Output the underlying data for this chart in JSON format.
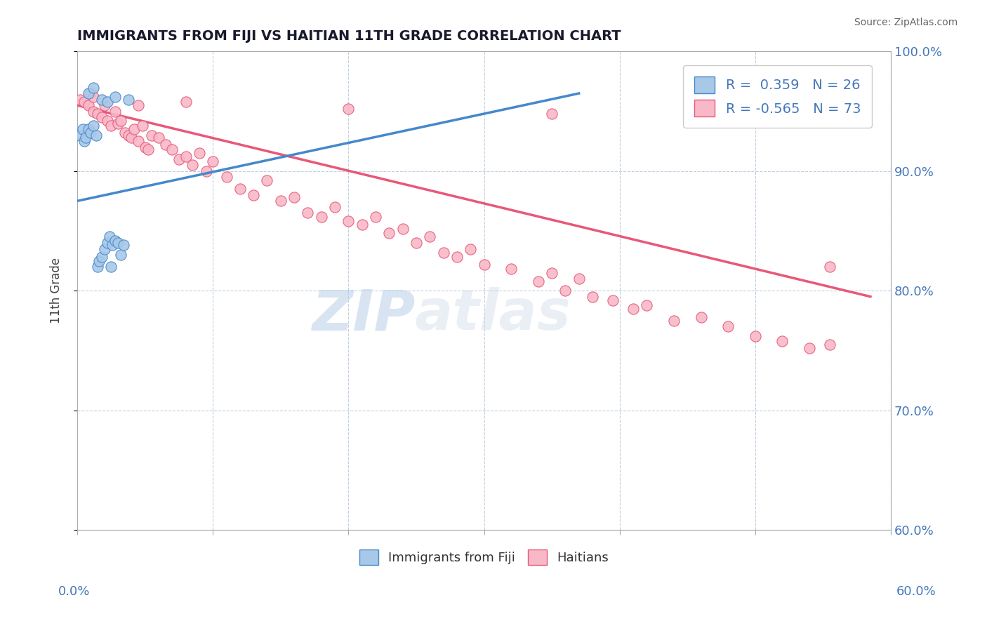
{
  "title": "IMMIGRANTS FROM FIJI VS HAITIAN 11TH GRADE CORRELATION CHART",
  "source": "Source: ZipAtlas.com",
  "ylabel_label": "11th Grade",
  "xmin": 0.0,
  "xmax": 0.6,
  "ymin": 0.6,
  "ymax": 1.0,
  "fiji_R": 0.359,
  "fiji_N": 26,
  "haiti_R": -0.565,
  "haiti_N": 73,
  "fiji_color": "#a8c8e8",
  "fiji_line_color": "#4488cc",
  "haiti_color": "#f8b8c8",
  "haiti_line_color": "#e85878",
  "fiji_x": [
    0.002,
    0.004,
    0.005,
    0.006,
    0.008,
    0.01,
    0.012,
    0.014,
    0.015,
    0.016,
    0.018,
    0.02,
    0.022,
    0.024,
    0.025,
    0.026,
    0.028,
    0.03,
    0.032,
    0.034,
    0.008,
    0.012,
    0.018,
    0.022,
    0.028,
    0.038
  ],
  "fiji_y": [
    0.93,
    0.935,
    0.925,
    0.928,
    0.935,
    0.932,
    0.938,
    0.93,
    0.82,
    0.825,
    0.828,
    0.835,
    0.84,
    0.845,
    0.82,
    0.838,
    0.842,
    0.84,
    0.83,
    0.838,
    0.965,
    0.97,
    0.96,
    0.958,
    0.962,
    0.96
  ],
  "haiti_x": [
    0.002,
    0.005,
    0.008,
    0.01,
    0.012,
    0.015,
    0.018,
    0.02,
    0.022,
    0.025,
    0.028,
    0.03,
    0.032,
    0.035,
    0.038,
    0.04,
    0.042,
    0.045,
    0.048,
    0.05,
    0.052,
    0.055,
    0.06,
    0.065,
    0.07,
    0.075,
    0.08,
    0.085,
    0.09,
    0.095,
    0.1,
    0.11,
    0.12,
    0.13,
    0.14,
    0.15,
    0.16,
    0.17,
    0.18,
    0.19,
    0.2,
    0.21,
    0.22,
    0.23,
    0.24,
    0.25,
    0.26,
    0.27,
    0.28,
    0.29,
    0.3,
    0.32,
    0.34,
    0.35,
    0.36,
    0.37,
    0.38,
    0.395,
    0.41,
    0.42,
    0.44,
    0.46,
    0.48,
    0.5,
    0.52,
    0.54,
    0.555,
    0.012,
    0.045,
    0.08,
    0.2,
    0.35,
    0.555
  ],
  "haiti_y": [
    0.96,
    0.958,
    0.955,
    0.965,
    0.95,
    0.948,
    0.945,
    0.955,
    0.942,
    0.938,
    0.95,
    0.94,
    0.942,
    0.932,
    0.93,
    0.928,
    0.935,
    0.925,
    0.938,
    0.92,
    0.918,
    0.93,
    0.928,
    0.922,
    0.918,
    0.91,
    0.912,
    0.905,
    0.915,
    0.9,
    0.908,
    0.895,
    0.885,
    0.88,
    0.892,
    0.875,
    0.878,
    0.865,
    0.862,
    0.87,
    0.858,
    0.855,
    0.862,
    0.848,
    0.852,
    0.84,
    0.845,
    0.832,
    0.828,
    0.835,
    0.822,
    0.818,
    0.808,
    0.815,
    0.8,
    0.81,
    0.795,
    0.792,
    0.785,
    0.788,
    0.775,
    0.778,
    0.77,
    0.762,
    0.758,
    0.752,
    0.755,
    0.962,
    0.955,
    0.958,
    0.952,
    0.948,
    0.82
  ],
  "fiji_trend_x": [
    0.0,
    0.37
  ],
  "fiji_trend_y": [
    0.875,
    0.965
  ],
  "haiti_trend_x": [
    0.0,
    0.585
  ],
  "haiti_trend_y": [
    0.955,
    0.795
  ],
  "watermark_zip": "ZIP",
  "watermark_atlas": "atlas",
  "legend_fiji_label": "Immigrants from Fiji",
  "legend_haiti_label": "Haitians",
  "background_color": "#ffffff",
  "grid_color": "#c0d0e0",
  "title_color": "#1a1a2e",
  "axis_label_color": "#4477bb",
  "right_axis_color": "#4477bb"
}
